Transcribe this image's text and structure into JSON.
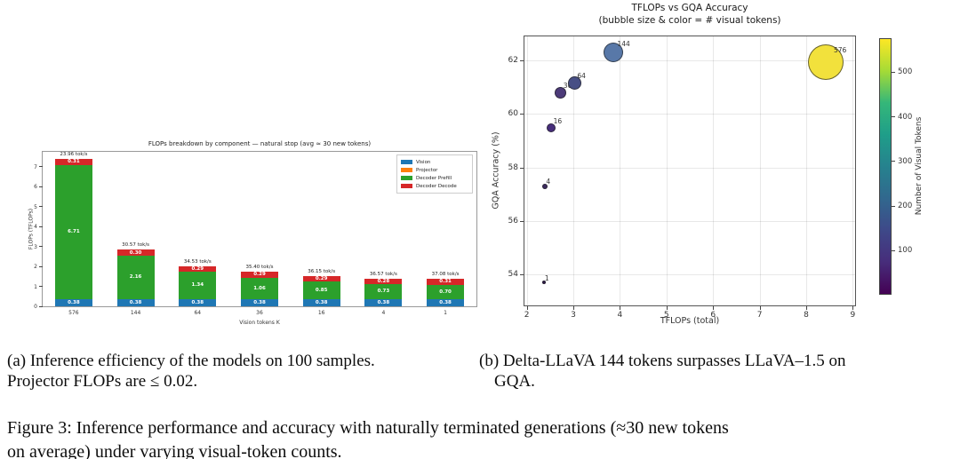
{
  "figure": {
    "caption_a_line1": "(a) Inference efficiency of the models on 100 samples.",
    "caption_a_line2": "Projector FLOPs are ≤ 0.02.",
    "caption_b_line1": "(b) Delta-LLaVA 144 tokens surpasses LLaVA–1.5 on",
    "caption_b_line2": "GQA.",
    "figure_caption_line1": "Figure 3: Inference performance and accuracy with naturally terminated generations (≈30 new tokens",
    "figure_caption_line2": "on average) under varying visual-token counts."
  },
  "chart_data": [
    {
      "type": "bar",
      "stacked": true,
      "title": "FLOPs breakdown by component — natural stop (avg ≈ 30 new tokens)",
      "xlabel": "Vision tokens K",
      "ylabel": "FLOPs (TFLOPs)",
      "categories": [
        "576",
        "144",
        "64",
        "36",
        "16",
        "4",
        "1"
      ],
      "ylim": [
        0,
        7.75
      ],
      "yticks": [
        0,
        1,
        2,
        3,
        4,
        5,
        6,
        7
      ],
      "grid": false,
      "legend_position": "upper right",
      "bar_top_labels": [
        "23.96 tok/s",
        "30.57 tok/s",
        "34.53 tok/s",
        "35.40 tok/s",
        "36.15 tok/s",
        "36.57 tok/s",
        "37.08 tok/s"
      ],
      "series": [
        {
          "name": "Vision",
          "color": "#1f77b4",
          "values": [
            0.38,
            0.38,
            0.38,
            0.38,
            0.38,
            0.38,
            0.38
          ]
        },
        {
          "name": "Projector",
          "color": "#ff7f0e",
          "values": [
            0,
            0,
            0,
            0,
            0,
            0,
            0
          ]
        },
        {
          "name": "Decoder Prefill",
          "color": "#2ca02c",
          "values": [
            6.71,
            2.16,
            1.34,
            1.06,
            0.85,
            0.73,
            0.7
          ]
        },
        {
          "name": "Decoder Decode",
          "color": "#d62728",
          "values": [
            0.31,
            0.3,
            0.29,
            0.29,
            0.29,
            0.28,
            0.31
          ]
        }
      ]
    },
    {
      "type": "scatter",
      "title": "TFLOPs vs GQA Accuracy",
      "subtitle": "(bubble size & color = # visual tokens)",
      "xlabel": "TFLOPs (total)",
      "ylabel": "GQA Accuracy (%)",
      "xlim": [
        1.95,
        9.05
      ],
      "ylim": [
        52.85,
        62.9
      ],
      "xticks": [
        2,
        3,
        4,
        5,
        6,
        7,
        8,
        9
      ],
      "yticks": [
        54,
        56,
        58,
        60,
        62
      ],
      "grid": true,
      "points": [
        {
          "label": "1",
          "x": 2.37,
          "y": 53.7,
          "r": 2,
          "color": "#30194e"
        },
        {
          "label": "4",
          "x": 2.39,
          "y": 57.3,
          "r": 3,
          "color": "#3b2a5e"
        },
        {
          "label": "16",
          "x": 2.53,
          "y": 59.5,
          "r": 5,
          "color": "#472d7b"
        },
        {
          "label": "36",
          "x": 2.73,
          "y": 60.8,
          "r": 6.5,
          "color": "#4c3a79"
        },
        {
          "label": "64",
          "x": 3.02,
          "y": 61.15,
          "r": 7.5,
          "color": "#474f85"
        },
        {
          "label": "144",
          "x": 3.85,
          "y": 62.3,
          "r": 11,
          "color": "#5878a8"
        },
        {
          "label": "576",
          "x": 8.42,
          "y": 61.95,
          "r": 20,
          "color": "#f2e13c"
        }
      ],
      "colorbar": {
        "label": "Number of Visual Tokens",
        "ticks": [
          100,
          200,
          300,
          400,
          500
        ],
        "range": [
          1,
          576
        ],
        "colormap": "viridis"
      }
    }
  ]
}
